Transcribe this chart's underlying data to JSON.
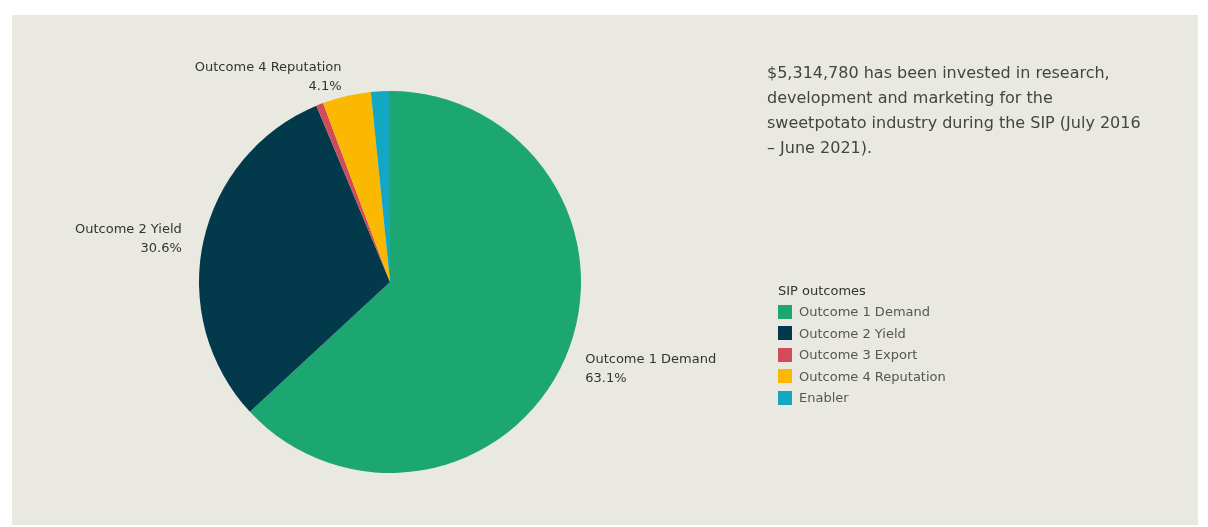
{
  "chart_data": {
    "type": "pie",
    "categories": [
      "Outcome 1 Demand",
      "Outcome 2 Yield",
      "Outcome 3 Export",
      "Outcome 4 Reputation",
      "Enabler"
    ],
    "values": [
      63.1,
      30.6,
      0.6,
      4.1,
      1.6
    ],
    "value_labels": [
      "63.1%",
      "30.6%",
      null,
      "4.1%",
      null
    ],
    "colors": [
      "#1ba672",
      "#023a4b",
      "#d14b5a",
      "#fbb800",
      "#14a7c2"
    ],
    "legend": "right",
    "legend_title": "SIP outcomes",
    "annotations": [
      "$5,314,780 has been invested in research, development and marketing for the sweetpotato industry during the SIP (July 2016 – June 2021)."
    ]
  }
}
